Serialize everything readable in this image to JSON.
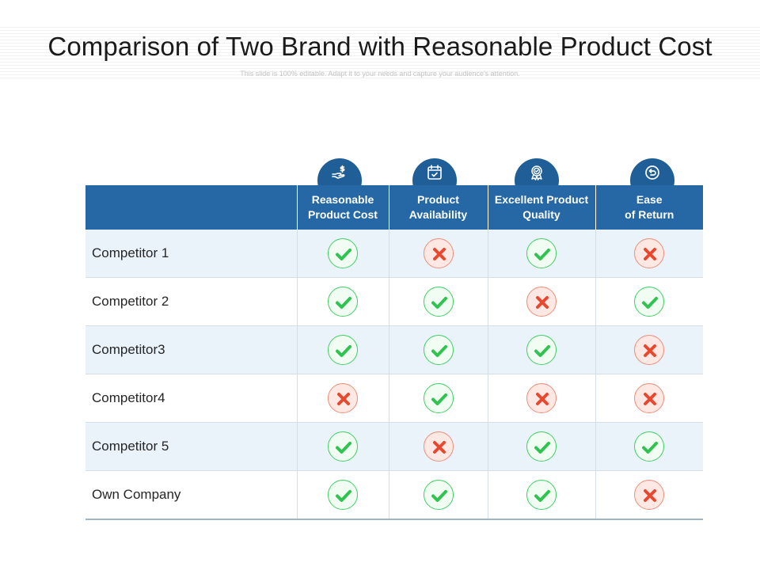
{
  "title": "Comparison of Two Brand with Reasonable Product Cost",
  "subtitle": "This slide is 100% editable. Adapt it to your needs and capture your audience's attention.",
  "colors": {
    "header": "#2568a5",
    "icon_circle": "#1f5e96",
    "row_tint": "#eaf3fa",
    "check": "#2fc350",
    "cross": "#e8482f"
  },
  "columns": [
    {
      "label": "Reasonable\nProduct Cost",
      "icon": "hand-dollar-icon"
    },
    {
      "label": "Product\nAvailability",
      "icon": "calendar-check-icon"
    },
    {
      "label": "Excellent Product\nQuality",
      "icon": "quality-badge-icon"
    },
    {
      "label": "Ease\nof Return",
      "icon": "return-arrow-icon"
    }
  ],
  "rows": [
    {
      "label": "Competitor 1",
      "values": [
        true,
        false,
        true,
        false
      ]
    },
    {
      "label": "Competitor 2",
      "values": [
        true,
        true,
        false,
        true
      ]
    },
    {
      "label": "Competitor3",
      "values": [
        true,
        true,
        true,
        false
      ]
    },
    {
      "label": "Competitor4",
      "values": [
        false,
        true,
        false,
        false
      ]
    },
    {
      "label": "Competitor 5",
      "values": [
        true,
        false,
        true,
        true
      ]
    },
    {
      "label": "Own Company",
      "values": [
        true,
        true,
        true,
        false
      ]
    }
  ]
}
